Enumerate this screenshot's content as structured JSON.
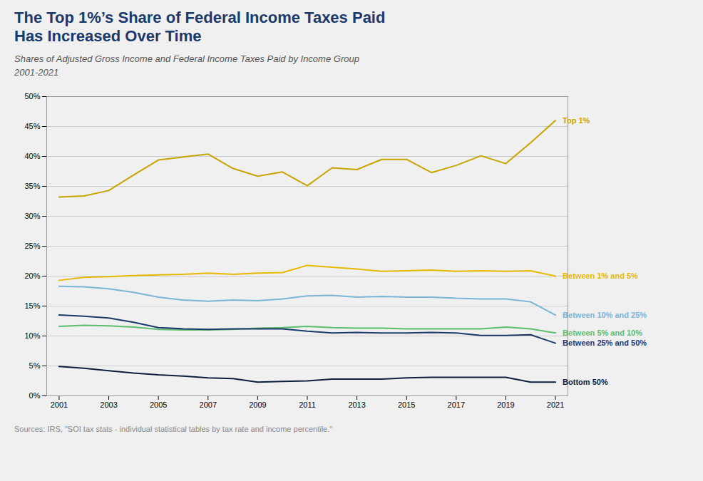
{
  "chart_data": {
    "type": "line",
    "title": "The Top 1%’s Share of Federal Income Taxes Paid\nHas Increased Over Time",
    "subtitle": "Shares of Adjusted Gross Income and Federal Income Taxes Paid by Income Group\n2001-2021",
    "caption": "Sources: IRS, \"SOI tax stats - individual statistical tables by tax rate and income percentile.\"",
    "x": [
      2001,
      2002,
      2003,
      2004,
      2005,
      2006,
      2007,
      2008,
      2009,
      2010,
      2011,
      2012,
      2013,
      2014,
      2015,
      2016,
      2017,
      2018,
      2019,
      2020,
      2021
    ],
    "series": [
      {
        "name": "Top 1%",
        "color": "#C8A400",
        "values": [
          33.2,
          33.4,
          34.3,
          36.9,
          39.4,
          39.9,
          40.4,
          38.0,
          36.7,
          37.4,
          35.1,
          38.1,
          37.8,
          39.5,
          39.5,
          37.3,
          38.5,
          40.1,
          38.8,
          42.3,
          46.0
        ]
      },
      {
        "name": "Between 1% and 5%",
        "color": "#E8B800",
        "values": [
          19.3,
          19.8,
          19.9,
          20.1,
          20.2,
          20.3,
          20.5,
          20.3,
          20.5,
          20.6,
          21.8,
          21.5,
          21.2,
          20.8,
          20.9,
          21.0,
          20.8,
          20.9,
          20.8,
          20.9,
          20.0
        ]
      },
      {
        "name": "Between 10% and 25%",
        "color": "#7BB5D6",
        "values": [
          18.3,
          18.2,
          17.9,
          17.3,
          16.5,
          16.0,
          15.8,
          16.0,
          15.9,
          16.2,
          16.7,
          16.8,
          16.5,
          16.6,
          16.5,
          16.5,
          16.3,
          16.2,
          16.2,
          15.7,
          13.5
        ]
      },
      {
        "name": "Between 5% and 10%",
        "color": "#5BBD6E",
        "values": [
          11.6,
          11.8,
          11.7,
          11.5,
          11.1,
          11.0,
          11.0,
          11.1,
          11.3,
          11.4,
          11.6,
          11.4,
          11.3,
          11.3,
          11.2,
          11.2,
          11.2,
          11.2,
          11.5,
          11.2,
          10.5
        ]
      },
      {
        "name": "Between 25% and 50%",
        "color": "#1B3A6B",
        "values": [
          13.5,
          13.3,
          13.0,
          12.3,
          11.4,
          11.2,
          11.1,
          11.2,
          11.2,
          11.2,
          10.8,
          10.5,
          10.6,
          10.5,
          10.5,
          10.6,
          10.5,
          10.1,
          10.1,
          10.2,
          8.8
        ]
      },
      {
        "name": "Bottom 50%",
        "color": "#0D1F3C",
        "values": [
          4.9,
          4.6,
          4.2,
          3.8,
          3.5,
          3.3,
          3.0,
          2.9,
          2.3,
          2.4,
          2.5,
          2.8,
          2.8,
          2.8,
          3.0,
          3.1,
          3.1,
          3.1,
          3.1,
          2.3,
          2.3
        ]
      }
    ],
    "xlim": [
      2000.5,
      2021.5
    ],
    "xticks": [
      2001,
      2003,
      2005,
      2007,
      2009,
      2011,
      2013,
      2015,
      2017,
      2019,
      2021
    ],
    "ylim": [
      0,
      50
    ],
    "yticks": [
      {
        "value": 0,
        "label": "0%"
      },
      {
        "value": 5,
        "label": "5%"
      },
      {
        "value": 10,
        "label": "10%"
      },
      {
        "value": 15,
        "label": "15%"
      },
      {
        "value": 20,
        "label": "20%"
      },
      {
        "value": 25,
        "label": "25%"
      },
      {
        "value": 30,
        "label": "30%"
      },
      {
        "value": 35,
        "label": "35%"
      },
      {
        "value": 40,
        "label": "40%"
      },
      {
        "value": 45,
        "label": "45%"
      },
      {
        "value": 50,
        "label": "50%"
      }
    ],
    "grid": true
  }
}
